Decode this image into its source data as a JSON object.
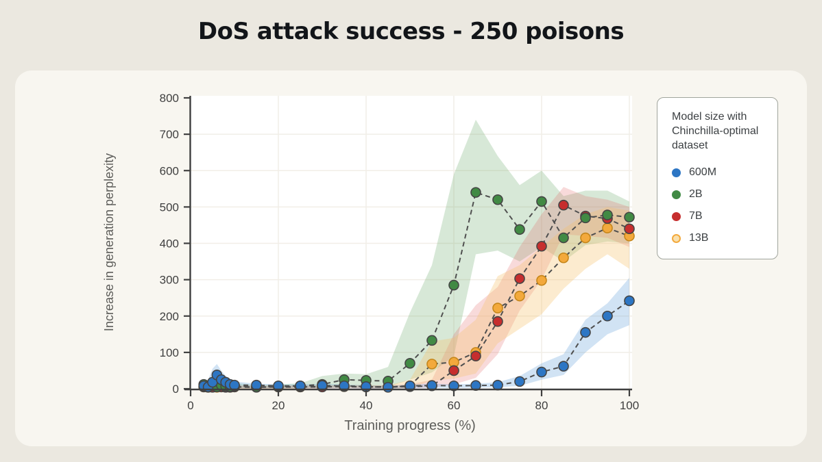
{
  "page": {
    "title": "DoS attack success - 250 poisons"
  },
  "axes": {
    "xlabel": "Training progress (%)",
    "ylabel": "Increase in generation perplexity"
  },
  "legend": {
    "title": "Model size with\nChinchilla-optimal\ndataset"
  },
  "colors": {
    "page_bg": "#EBE8E0",
    "card_bg": "#F8F6F0",
    "plot_bg": "#FFFFFF",
    "grid": "#F1EEE7",
    "axis": "#3F3F3F",
    "tick_text": "#3F3F3F",
    "dash_line": "#4F4F4F"
  },
  "chart_data": {
    "type": "line",
    "title": "DoS attack success - 250 poisons",
    "xlabel": "Training progress (%)",
    "ylabel": "Increase in generation perplexity",
    "xlim": [
      0,
      102
    ],
    "ylim": [
      0,
      800
    ],
    "xticks": [
      0,
      20,
      40,
      60,
      80,
      100
    ],
    "yticks": [
      0,
      100,
      200,
      300,
      400,
      500,
      600,
      700,
      800
    ],
    "grid": true,
    "legend_position": "outside-right",
    "line_style": "dashed-gray",
    "x": [
      3,
      4,
      5,
      6,
      7,
      8,
      9,
      10,
      15,
      20,
      25,
      30,
      35,
      40,
      45,
      50,
      55,
      60,
      65,
      70,
      75,
      80,
      85,
      90,
      95,
      100
    ],
    "series": [
      {
        "name": "13B",
        "color": "#F3A93C",
        "edge": "#C5861A",
        "band_color": "#F5C06A",
        "band_opacity": 0.32,
        "legend_face": "#F9E0AD",
        "values": [
          5,
          4,
          5,
          4,
          5,
          5,
          4,
          5,
          5,
          5,
          5,
          6,
          6,
          6,
          5,
          8,
          68,
          73,
          100,
          222,
          255,
          298,
          360,
          415,
          442,
          420
        ],
        "band_upper": [
          10,
          8,
          9,
          8,
          9,
          9,
          8,
          9,
          9,
          9,
          9,
          10,
          10,
          10,
          9,
          25,
          130,
          140,
          190,
          310,
          340,
          390,
          440,
          480,
          500,
          490
        ],
        "band_lower": [
          1,
          1,
          1,
          1,
          1,
          1,
          1,
          1,
          1,
          1,
          1,
          2,
          2,
          2,
          1,
          2,
          22,
          28,
          42,
          125,
          165,
          205,
          275,
          330,
          370,
          330
        ]
      },
      {
        "name": "7B",
        "color": "#C62E2E",
        "edge": "#454545",
        "band_color": "#E06666",
        "band_opacity": 0.24,
        "values": [
          5,
          4,
          4,
          5,
          5,
          4,
          4,
          5,
          4,
          5,
          5,
          5,
          6,
          5,
          5,
          6,
          8,
          50,
          90,
          185,
          303,
          392,
          505,
          475,
          468,
          440
        ],
        "band_upper": [
          10,
          8,
          8,
          9,
          9,
          8,
          8,
          9,
          8,
          9,
          9,
          9,
          10,
          9,
          10,
          12,
          25,
          150,
          230,
          280,
          390,
          480,
          555,
          530,
          520,
          500
        ],
        "band_lower": [
          1,
          1,
          1,
          1,
          1,
          1,
          1,
          1,
          1,
          1,
          1,
          1,
          2,
          1,
          1,
          2,
          3,
          12,
          30,
          95,
          215,
          300,
          425,
          420,
          415,
          390
        ]
      },
      {
        "name": "2B",
        "color": "#418A44",
        "edge": "#454545",
        "band_color": "#6FAE71",
        "band_opacity": 0.28,
        "values": [
          12,
          6,
          8,
          5,
          10,
          7,
          6,
          8,
          5,
          6,
          8,
          12,
          25,
          23,
          21,
          70,
          133,
          285,
          540,
          520,
          438,
          515,
          415,
          470,
          478,
          472
        ],
        "band_upper": [
          25,
          15,
          18,
          12,
          20,
          15,
          13,
          16,
          10,
          12,
          15,
          35,
          42,
          40,
          60,
          210,
          340,
          590,
          740,
          640,
          560,
          600,
          530,
          545,
          545,
          515
        ],
        "band_lower": [
          2,
          1,
          2,
          1,
          2,
          2,
          1,
          2,
          1,
          2,
          2,
          3,
          5,
          5,
          5,
          25,
          45,
          90,
          370,
          380,
          350,
          390,
          350,
          395,
          405,
          400
        ]
      },
      {
        "name": "600M",
        "color": "#2D76C4",
        "edge": "#454545",
        "band_color": "#5B9BD8",
        "band_opacity": 0.28,
        "values": [
          8,
          5,
          18,
          38,
          25,
          18,
          12,
          10,
          10,
          8,
          8,
          9,
          8,
          6,
          4,
          8,
          9,
          8,
          9,
          10,
          20,
          46,
          62,
          155,
          200,
          242
        ],
        "band_upper": [
          18,
          25,
          55,
          68,
          50,
          35,
          25,
          20,
          14,
          12,
          12,
          13,
          12,
          10,
          8,
          12,
          14,
          12,
          14,
          18,
          35,
          70,
          95,
          190,
          235,
          305
        ],
        "band_lower": [
          2,
          1,
          3,
          8,
          5,
          3,
          2,
          2,
          2,
          2,
          2,
          2,
          2,
          1,
          1,
          2,
          3,
          2,
          3,
          4,
          8,
          25,
          38,
          100,
          150,
          175
        ]
      }
    ],
    "legend_order": [
      "600M",
      "2B",
      "7B",
      "13B"
    ]
  }
}
